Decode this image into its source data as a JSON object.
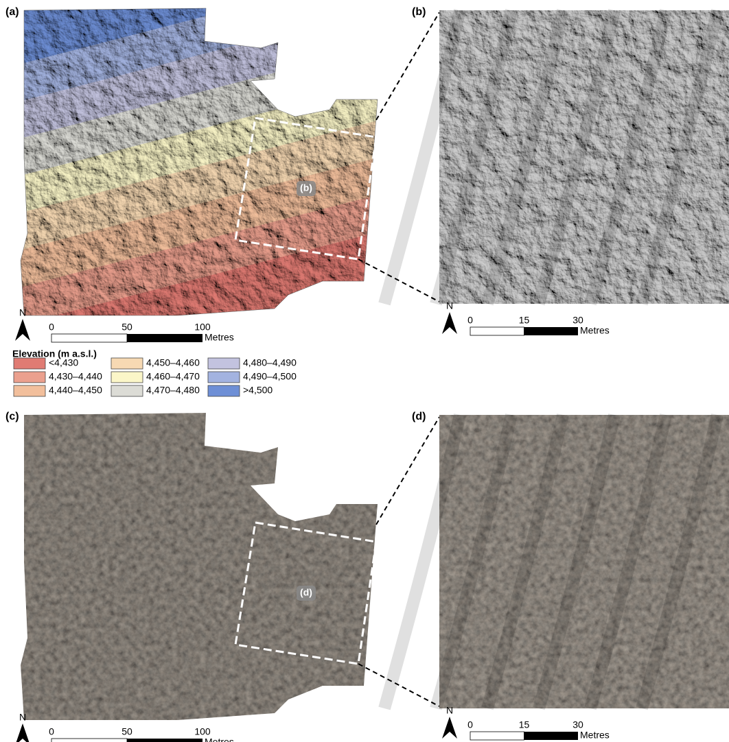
{
  "panels": [
    {
      "label": "(a)",
      "north": "N",
      "scale_bar": {
        "ticks": [
          "0",
          "50",
          "100"
        ],
        "unit": "Metres"
      },
      "inset_label": "(b)"
    },
    {
      "label": "(b)",
      "north": "N",
      "scale_bar": {
        "ticks": [
          "0",
          "15",
          "30"
        ],
        "unit": "Metres"
      }
    },
    {
      "label": "(c)",
      "north": "N",
      "scale_bar": {
        "ticks": [
          "0",
          "50",
          "100"
        ],
        "unit": "Metres"
      },
      "inset_label": "(d)"
    },
    {
      "label": "(d)",
      "north": "N",
      "scale_bar": {
        "ticks": [
          "0",
          "15",
          "30"
        ],
        "unit": "Metres"
      }
    }
  ],
  "legend": {
    "title": "Elevation (m a.s.l.)",
    "items": [
      {
        "label": "<4,430",
        "color": "#e07b73"
      },
      {
        "label": "4,430–4,440",
        "color": "#eba08e"
      },
      {
        "label": "4,440–4,450",
        "color": "#f2bf9c"
      },
      {
        "label": "4,450–4,460",
        "color": "#f7d9b3"
      },
      {
        "label": "4,460–4,470",
        "color": "#fbf6c8"
      },
      {
        "label": "4,470–4,480",
        "color": "#dcdcd6"
      },
      {
        "label": "4,480–4,490",
        "color": "#c3c3df"
      },
      {
        "label": "4,490–4,500",
        "color": "#a3b3e0"
      },
      {
        "label": ">4,500",
        "color": "#6e8fd6"
      }
    ]
  }
}
